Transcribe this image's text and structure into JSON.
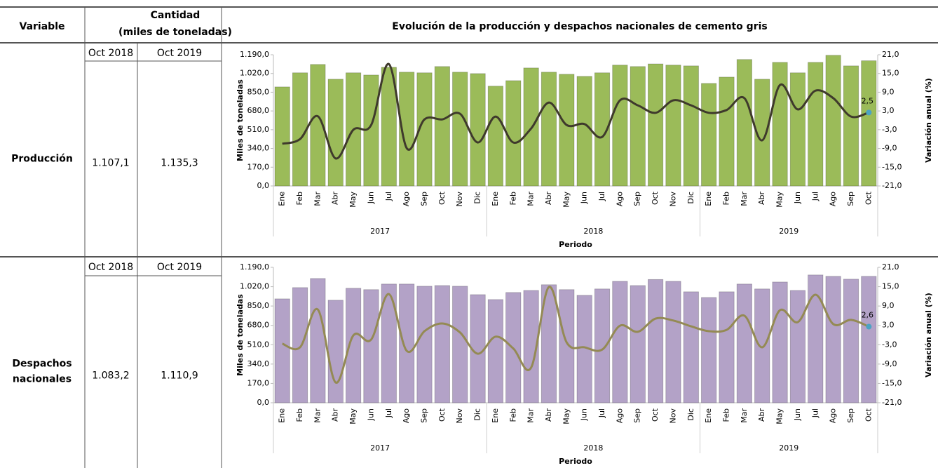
{
  "table": {
    "headers": {
      "variable": "Variable",
      "quantity": "Cantidad",
      "quantity_unit": "(miles de toneladas)",
      "chart_title": "Evolución de la producción y despachos nacionales de cemento gris"
    },
    "rows": [
      {
        "variable_lines": [
          "Producción"
        ],
        "periods": [
          "Oct 2018",
          "Oct 2019"
        ],
        "amounts": [
          "1.107,1",
          "1.135,3"
        ]
      },
      {
        "variable_lines": [
          "Despachos",
          "nacionales"
        ],
        "periods": [
          "Oct 2018",
          "Oct 2019"
        ],
        "amounts": [
          "1.083,2",
          "1.110,9"
        ]
      }
    ]
  },
  "chart_data": [
    {
      "type": "bar_line",
      "y_label": "Miles de toneladas",
      "y2_label": "Variación anual (%)",
      "x_label": "Periodo",
      "categories": [
        "Ene",
        "Feb",
        "Mar",
        "Abr",
        "May",
        "Jun",
        "Jul",
        "Ago",
        "Sep",
        "Oct",
        "Nov",
        "Dic",
        "Ene",
        "Feb",
        "Mar",
        "Abr",
        "May",
        "Jun",
        "Jul",
        "Ago",
        "Sep",
        "Oct",
        "Nov",
        "Dic",
        "Ene",
        "Feb",
        "Mar",
        "Abr",
        "May",
        "Jun",
        "Jul",
        "Ago",
        "Sep",
        "Oct"
      ],
      "groups": [
        "2017",
        "2018",
        "2019"
      ],
      "ylim": [
        0,
        1190
      ],
      "yticks": [
        {
          "value": 0,
          "label": "0,0"
        },
        {
          "value": 170,
          "label": "170,0"
        },
        {
          "value": 340,
          "label": "340,0"
        },
        {
          "value": 510,
          "label": "510,0"
        },
        {
          "value": 680,
          "label": "680,0"
        },
        {
          "value": 850,
          "label": "850,0"
        },
        {
          "value": 1020,
          "label": "1.020,0"
        },
        {
          "value": 1190,
          "label": "1.190,0"
        }
      ],
      "y2lim": [
        -21,
        21
      ],
      "y2ticks": [
        {
          "value": -21,
          "label": "-21,0"
        },
        {
          "value": -15,
          "label": "-15,0"
        },
        {
          "value": -9,
          "label": "-9,0"
        },
        {
          "value": -3,
          "label": "-3,0"
        },
        {
          "value": 3,
          "label": "3,0"
        },
        {
          "value": 9,
          "label": "9,0"
        },
        {
          "value": 15,
          "label": "15,0"
        },
        {
          "value": 21,
          "label": "21,0"
        }
      ],
      "label_marker_color": "#4ba3c3",
      "series": [
        {
          "type": "bar",
          "color": "#9bbb59",
          "values": [
            898,
            1026,
            1102,
            968,
            1026,
            1006,
            1076,
            1032,
            1026,
            1083,
            1032,
            1019,
            905,
            955,
            1070,
            1032,
            1013,
            994,
            1026,
            1096,
            1083,
            1107.1,
            1096,
            1089,
            930,
            987,
            1147,
            968,
            1121,
            1026,
            1121,
            1185,
            1089,
            1135.3
          ]
        },
        {
          "type": "line",
          "axis": "y2",
          "color": "#3f3a2c",
          "values": [
            -7.5,
            -6,
            1.3,
            -12.2,
            -3,
            -1.5,
            18,
            -8.9,
            0.3,
            0.3,
            2.1,
            -7.1,
            1.2,
            -7.1,
            -2.6,
            5.7,
            -1.5,
            -1.2,
            -5.3,
            6.4,
            4.8,
            2.4,
            6.4,
            4.8,
            2.4,
            3.3,
            7.1,
            -6.4,
            11.3,
            3.5,
            9.5,
            7.1,
            1.2,
            2.5
          ],
          "value_labels": [
            null,
            null,
            null,
            null,
            null,
            null,
            null,
            null,
            null,
            null,
            null,
            null,
            null,
            null,
            null,
            null,
            null,
            null,
            null,
            null,
            null,
            null,
            null,
            null,
            null,
            null,
            null,
            null,
            null,
            null,
            null,
            null,
            null,
            "2,5"
          ]
        }
      ]
    },
    {
      "type": "bar_line",
      "y_label": "Miles de toneladas",
      "y2_label": "Variación anual (%)",
      "x_label": "Periodo",
      "categories": [
        "Ene",
        "Feb",
        "Mar",
        "Abr",
        "May",
        "Jun",
        "Jul",
        "Ago",
        "Sep",
        "Oct",
        "Nov",
        "Dic",
        "Ene",
        "Feb",
        "Mar",
        "Abr",
        "May",
        "Jun",
        "Jul",
        "Ago",
        "Sep",
        "Oct",
        "Nov",
        "Dic",
        "Ene",
        "Feb",
        "Mar",
        "Abr",
        "May",
        "Jun",
        "Jul",
        "Ago",
        "Sep",
        "Oct"
      ],
      "groups": [
        "2017",
        "2018",
        "2019"
      ],
      "ylim": [
        0,
        1190
      ],
      "yticks": [
        {
          "value": 0,
          "label": "0,0"
        },
        {
          "value": 170,
          "label": "170,0"
        },
        {
          "value": 340,
          "label": "340,0"
        },
        {
          "value": 510,
          "label": "510,0"
        },
        {
          "value": 680,
          "label": "680,0"
        },
        {
          "value": 850,
          "label": "850,0"
        },
        {
          "value": 1020,
          "label": "1.020,0"
        },
        {
          "value": 1190,
          "label": "1.190,0"
        }
      ],
      "y2lim": [
        -21,
        21
      ],
      "y2ticks": [
        {
          "value": -21,
          "label": "-21,0"
        },
        {
          "value": -15,
          "label": "-15,0"
        },
        {
          "value": -9,
          "label": "-9,0"
        },
        {
          "value": -3,
          "label": "-3,0"
        },
        {
          "value": 3,
          "label": "3,0"
        },
        {
          "value": 9,
          "label": "9,0"
        },
        {
          "value": 15,
          "label": "15,0"
        },
        {
          "value": 21,
          "label": "21,0"
        }
      ],
      "label_marker_color": "#4ba3c3",
      "series": [
        {
          "type": "bar",
          "color": "#b3a2c7",
          "values": [
            913,
            1012,
            1092,
            901,
            1006,
            994,
            1043,
            1043,
            1024,
            1030,
            1024,
            950,
            907,
            969,
            987,
            1037,
            994,
            944,
            1000,
            1067,
            1030,
            1083.2,
            1067,
            975,
            925,
            975,
            1043,
            1000,
            1061,
            987,
            1123,
            1111,
            1086,
            1110.9
          ]
        },
        {
          "type": "line",
          "axis": "y2",
          "color": "#948a54",
          "values": [
            -2.7,
            -3.8,
            7.9,
            -14.7,
            -0.1,
            -1.4,
            12.7,
            -4.9,
            1.2,
            3.6,
            0.8,
            -5.8,
            -0.5,
            -4.2,
            -10.1,
            14.9,
            -2.3,
            -3.8,
            -4.5,
            2.9,
            1,
            5.1,
            4.5,
            2.7,
            1.2,
            1.6,
            6,
            -3.8,
            7.7,
            4,
            12.5,
            3.4,
            4.7,
            2.6
          ],
          "value_labels": [
            null,
            null,
            null,
            null,
            null,
            null,
            null,
            null,
            null,
            null,
            null,
            null,
            null,
            null,
            null,
            null,
            null,
            null,
            null,
            null,
            null,
            null,
            null,
            null,
            null,
            null,
            null,
            null,
            null,
            null,
            null,
            null,
            null,
            "2,6"
          ]
        }
      ]
    }
  ]
}
